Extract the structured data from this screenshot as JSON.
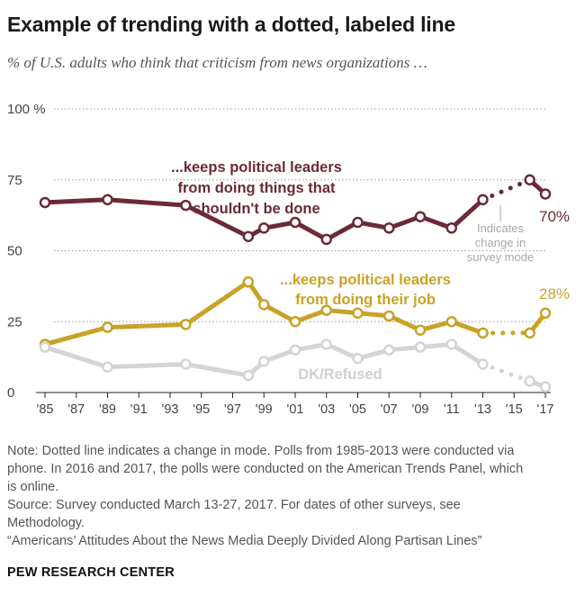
{
  "title": "Example of trending with a dotted, labeled line",
  "subtitle": "% of U.S. adults who think that criticism from news organizations …",
  "chart_data": {
    "type": "line",
    "x_tick_labels": [
      "'85",
      "'87",
      "'89",
      "'91",
      "'93",
      "'95",
      "'97",
      "'99",
      "'01",
      "'03",
      "'05",
      "'07",
      "'09",
      "'11",
      "'13",
      "'15",
      "'17"
    ],
    "y_tick_labels": [
      "100 %",
      "75",
      "50",
      "25",
      "0"
    ],
    "ylim": [
      0,
      100
    ],
    "xlim": [
      1985,
      2017
    ],
    "grid": "dotted horizontal at 25, 50, 75, 100",
    "series": [
      {
        "name": "...keeps political leaders from doing things that shouldn't be done",
        "label_lines": [
          "...keeps political leaders",
          "from doing things that",
          "shouldn't be done"
        ],
        "color": "#6b2a35",
        "end_label": "70%",
        "x": [
          1985,
          1989,
          1994,
          1998,
          1999,
          2001,
          2003,
          2005,
          2007,
          2009,
          2011,
          2013,
          2016,
          2017
        ],
        "y": [
          67,
          68,
          66,
          55,
          58,
          60,
          54,
          60,
          58,
          62,
          58,
          68,
          75,
          70
        ],
        "dotted_segment": [
          2013,
          2016
        ]
      },
      {
        "name": "...keeps political leaders from doing their job",
        "label_lines": [
          "...keeps political leaders",
          "from doing their job"
        ],
        "color": "#c9a227",
        "end_label": "28%",
        "x": [
          1985,
          1989,
          1994,
          1998,
          1999,
          2001,
          2003,
          2005,
          2007,
          2009,
          2011,
          2013,
          2016,
          2017
        ],
        "y": [
          17,
          23,
          24,
          39,
          31,
          25,
          29,
          28,
          27,
          22,
          25,
          21,
          21,
          28
        ],
        "dotted_segment": [
          2013,
          2016
        ]
      },
      {
        "name": "DK/Refused",
        "label_lines": [
          "DK/Refused"
        ],
        "color": "#d4d4d4",
        "x": [
          1985,
          1989,
          1994,
          1998,
          1999,
          2001,
          2003,
          2005,
          2007,
          2009,
          2011,
          2013,
          2016,
          2017
        ],
        "y": [
          16,
          9,
          10,
          6,
          11,
          15,
          17,
          12,
          15,
          16,
          17,
          10,
          4,
          2
        ],
        "dotted_segment": [
          2013,
          2016
        ]
      }
    ],
    "annotation_lines": [
      "Indicates",
      "change in",
      "survey mode"
    ]
  },
  "notes": {
    "note_lines": [
      "Note: Dotted line indicates a change in mode. Polls from 1985-2013 were conducted via",
      "phone. In 2016 and 2017, the polls were conducted on the American Trends Panel, which",
      "is online."
    ],
    "source_lines": [
      "Source: Survey conducted March 13-27, 2017. For dates of other surveys, see",
      "Methodology."
    ],
    "report": "“Americans’ Attitudes About the News Media Deeply Divided Along Partisan Lines”"
  },
  "brand": "PEW RESEARCH CENTER"
}
